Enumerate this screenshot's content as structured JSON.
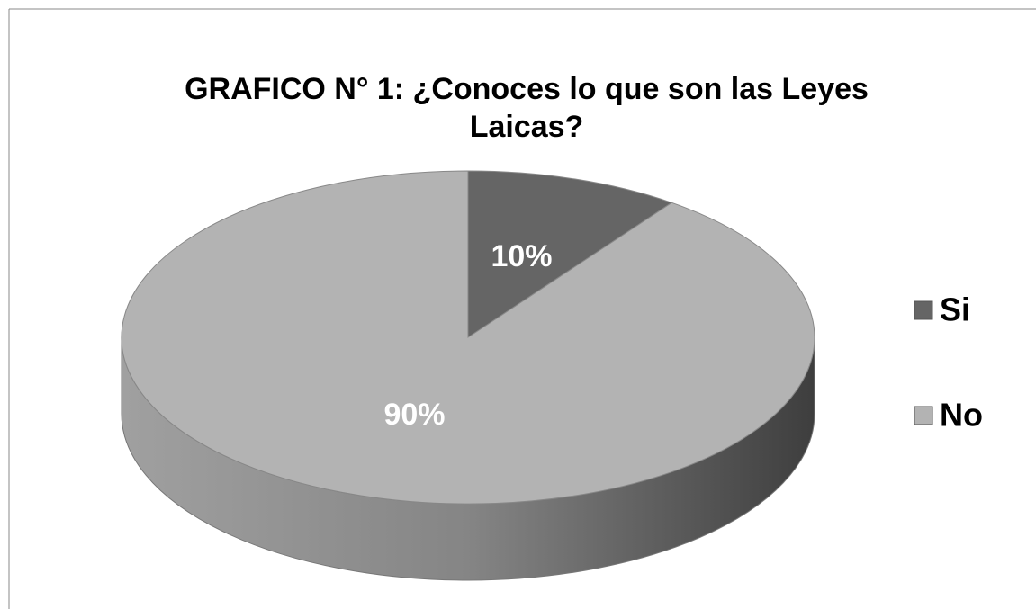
{
  "chart_data": {
    "type": "pie",
    "title": "GRAFICO N° 1: ¿Conoces lo que son las Leyes Laicas?",
    "categories": [
      "Si",
      "No"
    ],
    "values": [
      10,
      90
    ],
    "value_labels": [
      "10%",
      "90%"
    ],
    "colors": [
      "#656565",
      "#b3b3b3"
    ],
    "legend": "right"
  }
}
